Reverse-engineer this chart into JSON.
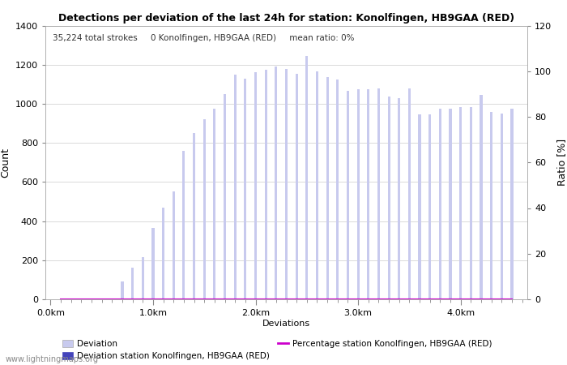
{
  "title": "Detections per deviation of the last 24h for station: Konolfingen, HB9GAA (RED)",
  "subtitle": "35,224 total strokes     0 Konolfingen, HB9GAA (RED)     mean ratio: 0%",
  "ylabel_left": "Count",
  "ylabel_right": "Ratio [%]",
  "xlabel": "Deviations",
  "ylim_left": [
    0,
    1400
  ],
  "ylim_right": [
    0,
    120
  ],
  "yticks_left": [
    0,
    200,
    400,
    600,
    800,
    1000,
    1200,
    1400
  ],
  "yticks_right": [
    0,
    20,
    40,
    60,
    80,
    100,
    120
  ],
  "bar_width": 0.025,
  "bar_color_light": "#c8caee",
  "bar_color_dark": "#4444bb",
  "line_color": "#cc00cc",
  "background_color": "#ffffff",
  "grid_color": "#cccccc",
  "watermark": "www.lightningmaps.org",
  "x_tick_labels": [
    "0.0km",
    "1.0km",
    "2.0km",
    "3.0km",
    "4.0km"
  ],
  "x_tick_positions": [
    0.0,
    1.0,
    2.0,
    3.0,
    4.0
  ],
  "bar_positions": [
    0.1,
    0.2,
    0.3,
    0.4,
    0.5,
    0.6,
    0.7,
    0.8,
    0.9,
    1.0,
    1.1,
    1.2,
    1.3,
    1.4,
    1.5,
    1.6,
    1.7,
    1.8,
    1.9,
    2.0,
    2.1,
    2.2,
    2.3,
    2.4,
    2.5,
    2.6,
    2.7,
    2.8,
    2.9,
    3.0,
    3.1,
    3.2,
    3.3,
    3.4,
    3.5,
    3.6,
    3.7,
    3.8,
    3.9,
    4.0,
    4.1,
    4.2,
    4.3,
    4.4,
    4.5
  ],
  "bar_heights": [
    2,
    2,
    2,
    2,
    2,
    2,
    90,
    160,
    215,
    365,
    470,
    550,
    760,
    850,
    920,
    975,
    1050,
    1150,
    1130,
    1160,
    1175,
    1190,
    1180,
    1155,
    1245,
    1165,
    1135,
    1125,
    1065,
    1075,
    1075,
    1080,
    1035,
    1030,
    1080,
    945,
    945,
    975,
    975,
    985,
    985,
    1045,
    960,
    950,
    975
  ],
  "station_bar_heights": [
    0,
    0,
    0,
    0,
    0,
    0,
    0,
    0,
    0,
    0,
    0,
    0,
    0,
    0,
    0,
    0,
    0,
    0,
    0,
    0,
    0,
    0,
    0,
    0,
    0,
    0,
    0,
    0,
    0,
    0,
    0,
    0,
    0,
    0,
    0,
    0,
    0,
    0,
    0,
    0,
    0,
    0,
    0,
    0,
    0
  ],
  "percentage_values": [
    0,
    0,
    0,
    0,
    0,
    0,
    0,
    0,
    0,
    0,
    0,
    0,
    0,
    0,
    0,
    0,
    0,
    0,
    0,
    0,
    0,
    0,
    0,
    0,
    0,
    0,
    0,
    0,
    0,
    0,
    0,
    0,
    0,
    0,
    0,
    0,
    0,
    0,
    0,
    0,
    0,
    0,
    0,
    0,
    0
  ]
}
